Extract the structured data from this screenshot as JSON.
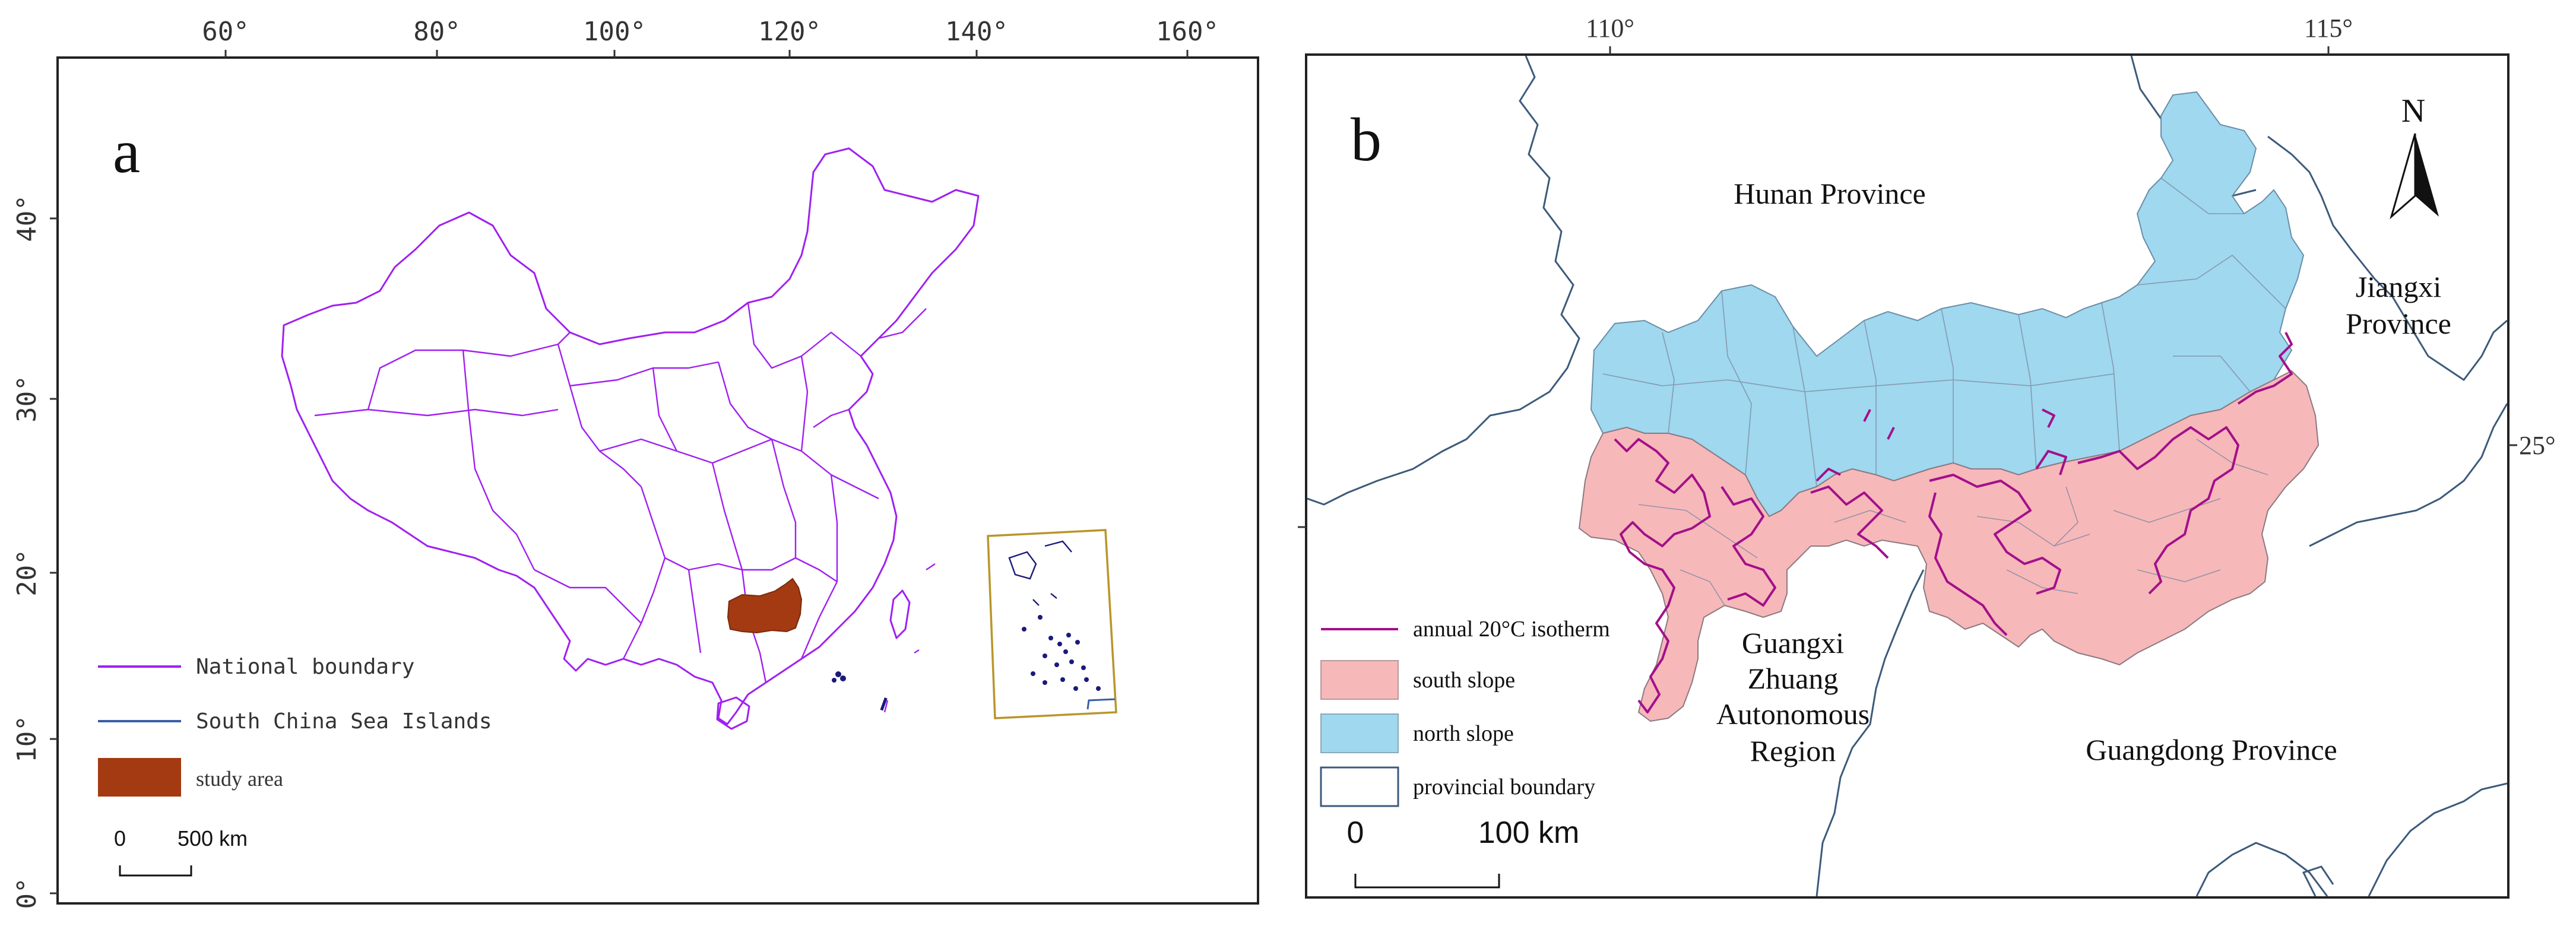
{
  "colors": {
    "national_boundary": "#a020f0",
    "south_china_sea": "#3a5fa8",
    "study_area": "#a33a12",
    "south_slope": "#f7b8ba",
    "north_slope": "#9fd8ef",
    "isotherm": "#a3108a",
    "provincial_boundary": "#3c5a7a",
    "inset_frame": "#b8962c"
  },
  "panel_a": {
    "label": "a",
    "top_ticks": [
      "60°",
      "80°",
      "100°",
      "120°",
      "140°",
      "160°"
    ],
    "left_ticks": [
      "40°",
      "30°",
      "20°",
      "10°",
      "0°"
    ],
    "legend": {
      "national_boundary": "National boundary",
      "south_china_sea": "South China Sea Islands",
      "study_area": "study area"
    },
    "scale": {
      "zero": "0",
      "length": "500 km"
    }
  },
  "panel_b": {
    "label": "b",
    "top_ticks": [
      "110°",
      "115°"
    ],
    "right_tick": "25°",
    "north_arrow": "N",
    "regions": {
      "hunan": "Hunan Province",
      "jiangxi_1": "Jiangxi",
      "jiangxi_2": "Province",
      "guangxi_1": "Guangxi",
      "guangxi_2": "Zhuang",
      "guangxi_3": "Autonomous",
      "guangxi_4": "Region",
      "guangdong": "Guangdong Province"
    },
    "legend": {
      "isotherm": "annual 20°C isotherm",
      "south_slope": "south slope",
      "north_slope": "north slope",
      "provincial_boundary": "provincial boundary"
    },
    "scale": {
      "zero": "0",
      "length": "100 km"
    }
  }
}
